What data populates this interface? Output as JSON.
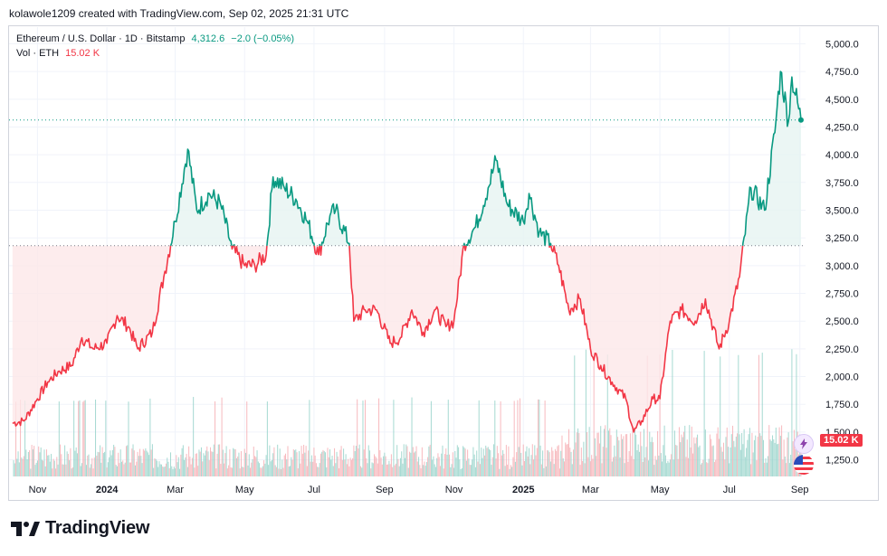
{
  "caption": "kolawole1209 created with TradingView.com, Sep 02, 2025 21:31 UTC",
  "legend": {
    "symbol": "Ethereum / U.S. Dollar · 1D · Bitstamp",
    "price": "4,312.6",
    "change": "−2.0 (−0.05%)",
    "vol_label": "Vol · ETH",
    "vol_value": "15.02 K"
  },
  "badges": {
    "volume": "15.02 K"
  },
  "logo": {
    "text": "TradingView"
  },
  "colors": {
    "up": "#089981",
    "down": "#f23645",
    "up_fill": "#e6f4f1",
    "down_fill": "#fde7e9"
  },
  "chart_data": {
    "type": "area",
    "x": [
      "2023-10-10",
      "2023-10-20",
      "2023-11-01",
      "2023-11-10",
      "2023-11-20",
      "2023-12-01",
      "2023-12-10",
      "2023-12-20",
      "2024-01-01",
      "2024-01-10",
      "2024-01-20",
      "2024-01-28",
      "2024-02-10",
      "2024-02-20",
      "2024-03-01",
      "2024-03-12",
      "2024-03-20",
      "2024-03-31",
      "2024-04-10",
      "2024-04-20",
      "2024-05-01",
      "2024-05-10",
      "2024-05-20",
      "2024-05-26",
      "2024-06-05",
      "2024-06-15",
      "2024-06-25",
      "2024-07-05",
      "2024-07-15",
      "2024-07-20",
      "2024-08-01",
      "2024-08-05",
      "2024-08-15",
      "2024-08-25",
      "2024-09-06",
      "2024-09-15",
      "2024-09-25",
      "2024-10-05",
      "2024-10-15",
      "2024-10-25",
      "2024-11-01",
      "2024-11-10",
      "2024-11-20",
      "2024-12-01",
      "2024-12-08",
      "2024-12-18",
      "2025-01-01",
      "2025-01-06",
      "2025-01-15",
      "2025-01-25",
      "2025-02-01",
      "2025-02-10",
      "2025-02-20",
      "2025-03-01",
      "2025-03-10",
      "2025-03-20",
      "2025-04-01",
      "2025-04-08",
      "2025-04-15",
      "2025-04-25",
      "2025-05-01",
      "2025-05-10",
      "2025-05-20",
      "2025-06-01",
      "2025-06-10",
      "2025-06-22",
      "2025-07-01",
      "2025-07-10",
      "2025-07-20",
      "2025-08-01",
      "2025-08-10",
      "2025-08-15",
      "2025-08-22",
      "2025-08-25",
      "2025-09-02"
    ],
    "values": [
      1580,
      1600,
      1800,
      1950,
      2050,
      2100,
      2350,
      2250,
      2300,
      2550,
      2450,
      2250,
      2400,
      2900,
      3400,
      4050,
      3500,
      3650,
      3550,
      3150,
      3000,
      3000,
      3100,
      3800,
      3700,
      3600,
      3400,
      3100,
      3450,
      3500,
      3200,
      2500,
      2600,
      2600,
      2300,
      2350,
      2600,
      2400,
      2600,
      2450,
      2500,
      3200,
      3350,
      3700,
      3950,
      3550,
      3400,
      3650,
      3300,
      3200,
      3000,
      2600,
      2700,
      2250,
      2100,
      1950,
      1800,
      1500,
      1600,
      1800,
      1800,
      2500,
      2600,
      2500,
      2700,
      2250,
      2500,
      2900,
      3700,
      3500,
      4200,
      4750,
      4300,
      4700,
      4312.6
    ],
    "ylim": [
      1100,
      5150
    ],
    "yticks": [
      "5,000.0",
      "4,750.0",
      "4,500.0",
      "4,250.0",
      "4,000.0",
      "3,750.0",
      "3,500.0",
      "3,250.0",
      "3,000.0",
      "2,750.0",
      "2,500.0",
      "2,250.0",
      "2,000.0",
      "1,750.0",
      "1,500.0",
      "1,250.0"
    ],
    "xticks": [
      {
        "label": "Nov",
        "date": "2023-11-01",
        "bold": false
      },
      {
        "label": "2024",
        "date": "2024-01-01",
        "bold": true
      },
      {
        "label": "Mar",
        "date": "2024-03-01",
        "bold": false
      },
      {
        "label": "May",
        "date": "2024-05-01",
        "bold": false
      },
      {
        "label": "Jul",
        "date": "2024-07-01",
        "bold": false
      },
      {
        "label": "Sep",
        "date": "2024-09-01",
        "bold": false
      },
      {
        "label": "Nov",
        "date": "2024-11-01",
        "bold": false
      },
      {
        "label": "2025",
        "date": "2025-01-01",
        "bold": true
      },
      {
        "label": "Mar",
        "date": "2025-03-01",
        "bold": false
      },
      {
        "label": "May",
        "date": "2025-05-01",
        "bold": false
      },
      {
        "label": "Jul",
        "date": "2025-07-01",
        "bold": false
      },
      {
        "label": "Sep",
        "date": "2025-09-01",
        "bold": false
      }
    ],
    "baseline": 3180,
    "last_price": 4312.6,
    "volume_last": "15.02 K",
    "grid": true
  }
}
